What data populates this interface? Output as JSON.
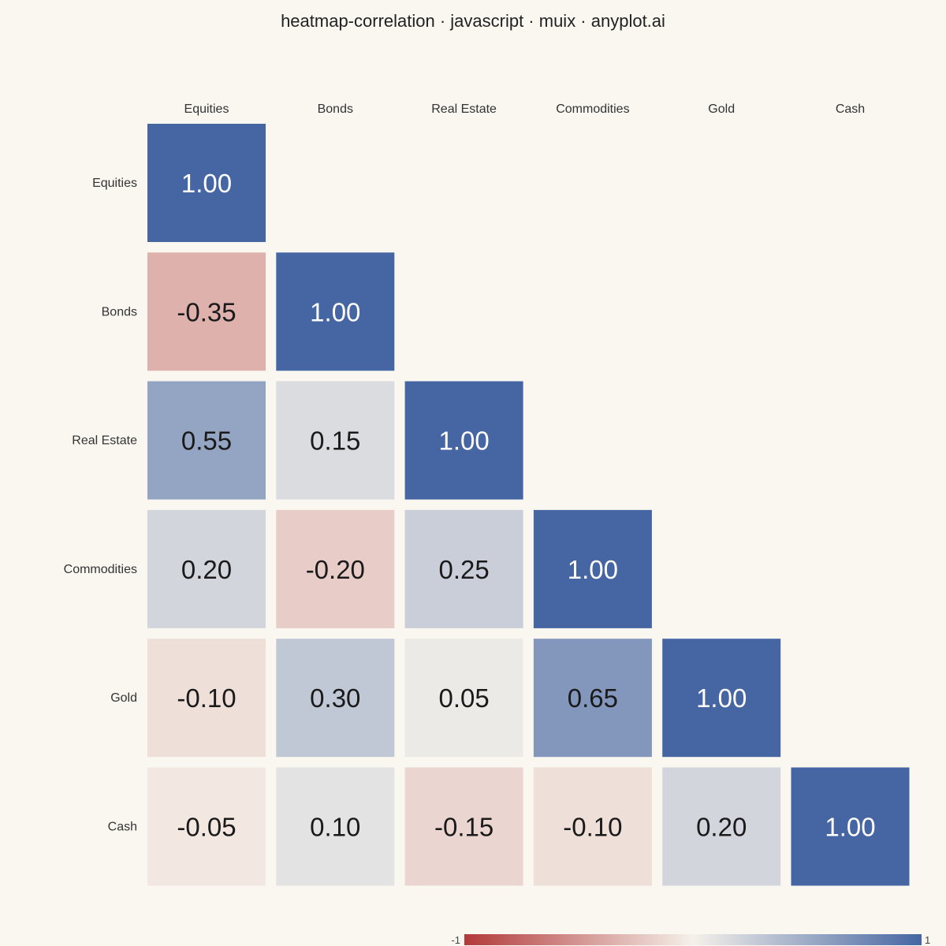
{
  "chart_data": {
    "type": "heatmap",
    "title": "heatmap-correlation · javascript · muix · anyplot.ai",
    "x_categories": [
      "Equities",
      "Bonds",
      "Real Estate",
      "Commodities",
      "Gold",
      "Cash"
    ],
    "y_categories": [
      "Equities",
      "Bonds",
      "Real Estate",
      "Commodities",
      "Gold",
      "Cash"
    ],
    "layout": "lower-triangle",
    "values": [
      [
        1.0
      ],
      [
        -0.35,
        1.0
      ],
      [
        0.55,
        0.15,
        1.0
      ],
      [
        0.2,
        -0.2,
        0.25,
        1.0
      ],
      [
        -0.1,
        0.3,
        0.05,
        0.65,
        1.0
      ],
      [
        -0.05,
        0.1,
        -0.15,
        -0.1,
        0.2,
        1.0
      ]
    ],
    "value_format": "0.00",
    "color_scale": {
      "min": -1,
      "max": 1,
      "min_label": "-1",
      "max_label": "1",
      "negative_color": "#B2393A",
      "neutral_color": "#F5F1EA",
      "positive_color": "#4566A3"
    },
    "legend_position": "bottom-right",
    "grid": false
  }
}
